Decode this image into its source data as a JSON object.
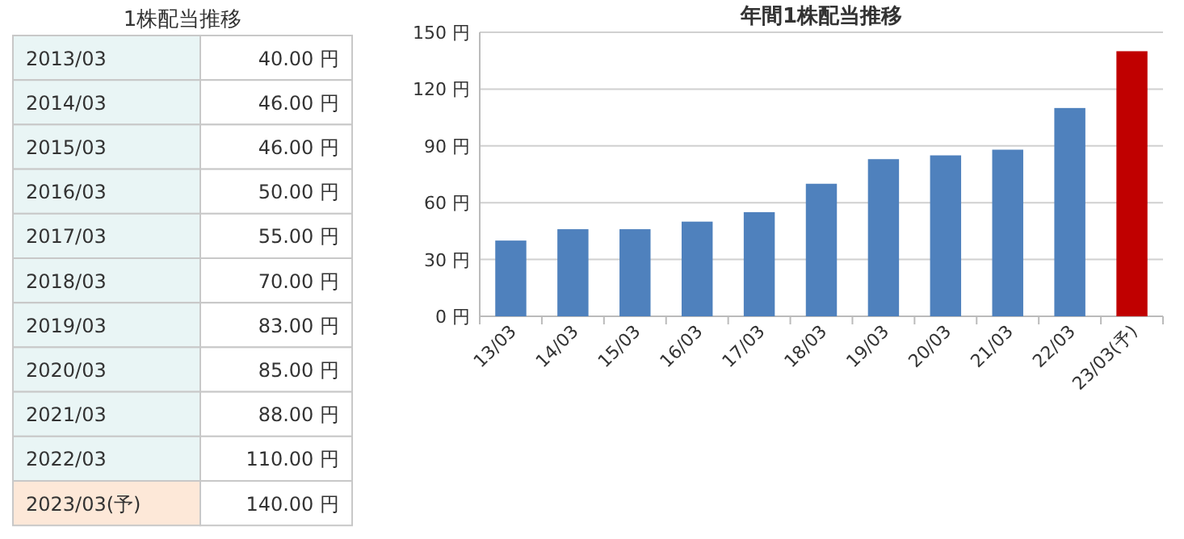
{
  "chart_data": [
    {
      "type": "other",
      "title": "1株配当推移",
      "categories": [
        "2013/03",
        "2014/03",
        "2015/03",
        "2016/03",
        "2017/03",
        "2018/03",
        "2019/03",
        "2020/03",
        "2021/03",
        "2022/03",
        "2023/03(予)"
      ],
      "value_labels": [
        "40.00 円",
        "46.00 円",
        "46.00 円",
        "50.00 円",
        "55.00 円",
        "70.00 円",
        "83.00 円",
        "85.00 円",
        "88.00 円",
        "110.00 円",
        "140.00 円"
      ],
      "colors": [
        "#e9f5f5",
        "#e9f5f5",
        "#e9f5f5",
        "#e9f5f5",
        "#e9f5f5",
        "#e9f5f5",
        "#e9f5f5",
        "#e9f5f5",
        "#e9f5f5",
        "#e9f5f5",
        "#fde8d8"
      ]
    },
    {
      "type": "bar",
      "title": "年間1株配当推移",
      "categories": [
        "13/03",
        "14/03",
        "15/03",
        "16/03",
        "17/03",
        "18/03",
        "19/03",
        "20/03",
        "21/03",
        "22/03",
        "23/03(予)"
      ],
      "values": [
        40,
        46,
        46,
        50,
        55,
        70,
        83,
        85,
        88,
        110,
        140
      ],
      "colors": [
        "#4f81bd",
        "#4f81bd",
        "#4f81bd",
        "#4f81bd",
        "#4f81bd",
        "#4f81bd",
        "#4f81bd",
        "#4f81bd",
        "#4f81bd",
        "#4f81bd",
        "#c00000"
      ],
      "ylim": [
        0,
        150
      ],
      "yticks": [
        {
          "value": 0,
          "label": "0 円"
        },
        {
          "value": 30,
          "label": "30 円"
        },
        {
          "value": 60,
          "label": "60 円"
        },
        {
          "value": 90,
          "label": "90 円"
        },
        {
          "value": 120,
          "label": "120 円"
        },
        {
          "value": 150,
          "label": "150 円"
        }
      ],
      "grid": "y"
    }
  ]
}
